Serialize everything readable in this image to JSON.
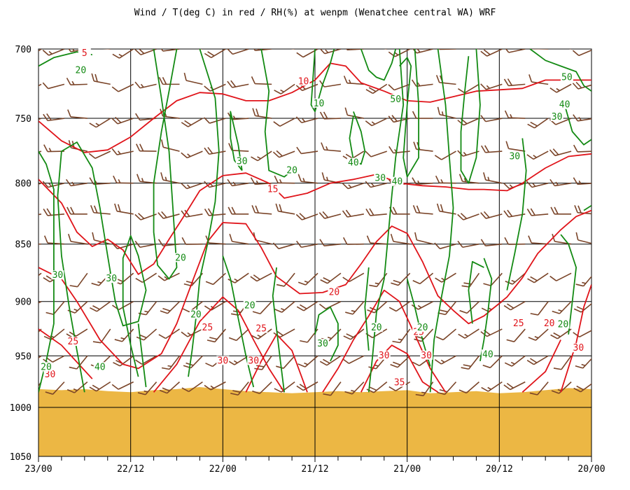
{
  "title": "Wind / T(deg C) in red / RH(%) at wenpm (Wenatchee central WA)  WRF",
  "colors": {
    "temperature": "#e0141a",
    "rh": "#138a13",
    "wind": "#7a4428",
    "terrain": "#ecb744",
    "grid": "#000000",
    "background": "#ffffff"
  },
  "chart_data": {
    "type": "line",
    "x_tick_labels": [
      "23/00",
      "22/12",
      "22/00",
      "21/12",
      "21/00",
      "20/12",
      "20/00"
    ],
    "y_tick_labels": [
      "700",
      "750",
      "800",
      "850",
      "900",
      "950",
      "1000",
      "1050"
    ],
    "y_values_hpa": [
      700,
      750,
      800,
      850,
      900,
      950,
      1000,
      1050
    ],
    "ylim": [
      700,
      1050
    ],
    "y_scale": "log-pressure",
    "xlim_forecast_hours": [
      72,
      0
    ],
    "x_axis_direction": "time decreasing to the right",
    "grid": true,
    "surface_pressure_hpa": [
      982,
      983,
      982,
      984,
      985,
      983,
      982,
      980,
      982,
      984,
      985,
      986,
      985,
      984,
      985,
      984,
      983,
      986,
      985,
      984,
      986,
      985,
      983,
      981,
      982
    ],
    "temperature_contour_labels": [
      {
        "text": "5",
        "x_hours": 66,
        "pressure": 704
      },
      {
        "text": "10",
        "x_hours": 37.5,
        "pressure": 724
      },
      {
        "text": "15",
        "x_hours": 41.5,
        "pressure": 806
      },
      {
        "text": "20",
        "x_hours": 33.5,
        "pressure": 893
      },
      {
        "text": "25",
        "x_hours": 67.5,
        "pressure": 938
      },
      {
        "text": "25",
        "x_hours": 50,
        "pressure": 925
      },
      {
        "text": "25",
        "x_hours": 43,
        "pressure": 926
      },
      {
        "text": "25",
        "x_hours": 22.5,
        "pressure": 929
      },
      {
        "text": "25",
        "x_hours": 9.5,
        "pressure": 921
      },
      {
        "text": "30",
        "x_hours": 70.5,
        "pressure": 969
      },
      {
        "text": "30",
        "x_hours": 48,
        "pressure": 956
      },
      {
        "text": "30",
        "x_hours": 44,
        "pressure": 956
      },
      {
        "text": "30",
        "x_hours": 27,
        "pressure": 951
      },
      {
        "text": "30",
        "x_hours": 21.5,
        "pressure": 951
      },
      {
        "text": "30",
        "x_hours": 1.7,
        "pressure": 944
      },
      {
        "text": "35",
        "x_hours": 25,
        "pressure": 977
      },
      {
        "text": "20",
        "x_hours": 5.5,
        "pressure": 921
      }
    ],
    "rh_contour_labels": [
      {
        "text": "20",
        "x_hours": 66.5,
        "pressure": 716
      },
      {
        "text": "10",
        "x_hours": 35.5,
        "pressure": 740
      },
      {
        "text": "50",
        "x_hours": 25.5,
        "pressure": 737
      },
      {
        "text": "50",
        "x_hours": 3.2,
        "pressure": 721
      },
      {
        "text": "30",
        "x_hours": 4.5,
        "pressure": 750
      },
      {
        "text": "40",
        "x_hours": 3.5,
        "pressure": 741
      },
      {
        "text": "30",
        "x_hours": 10,
        "pressure": 780
      },
      {
        "text": "30",
        "x_hours": 45.5,
        "pressure": 784
      },
      {
        "text": "20",
        "x_hours": 39,
        "pressure": 791
      },
      {
        "text": "40",
        "x_hours": 31,
        "pressure": 785
      },
      {
        "text": "30",
        "x_hours": 27.5,
        "pressure": 797
      },
      {
        "text": "40",
        "x_hours": 25.3,
        "pressure": 800
      },
      {
        "text": "20",
        "x_hours": 53.5,
        "pressure": 863
      },
      {
        "text": "30",
        "x_hours": 69.5,
        "pressure": 878
      },
      {
        "text": "30",
        "x_hours": 62.5,
        "pressure": 881
      },
      {
        "text": "20",
        "x_hours": 51.5,
        "pressure": 913
      },
      {
        "text": "20",
        "x_hours": 44.5,
        "pressure": 905
      },
      {
        "text": "30",
        "x_hours": 35,
        "pressure": 940
      },
      {
        "text": "20",
        "x_hours": 28,
        "pressure": 925
      },
      {
        "text": "20",
        "x_hours": 22,
        "pressure": 925
      },
      {
        "text": "40",
        "x_hours": 64,
        "pressure": 962
      },
      {
        "text": "20",
        "x_hours": 71,
        "pressure": 962
      },
      {
        "text": "40",
        "x_hours": 13.5,
        "pressure": 950
      },
      {
        "text": "20",
        "x_hours": 3.7,
        "pressure": 922
      }
    ],
    "temperature_contours_deg_c": [
      5,
      10,
      15,
      20,
      25,
      30,
      35
    ],
    "rh_contours_percent": [
      10,
      20,
      30,
      40,
      50
    ],
    "wind_barb_levels_hpa": [
      700,
      725,
      750,
      775,
      800,
      825,
      850,
      875,
      900,
      925,
      950,
      975
    ],
    "wind_barb_columns_hours": [
      72,
      69,
      66,
      63,
      60,
      57,
      54,
      51,
      48,
      45,
      42,
      39,
      36,
      33,
      30,
      27,
      24,
      21,
      18,
      15,
      12,
      9,
      6,
      3,
      0
    ]
  }
}
